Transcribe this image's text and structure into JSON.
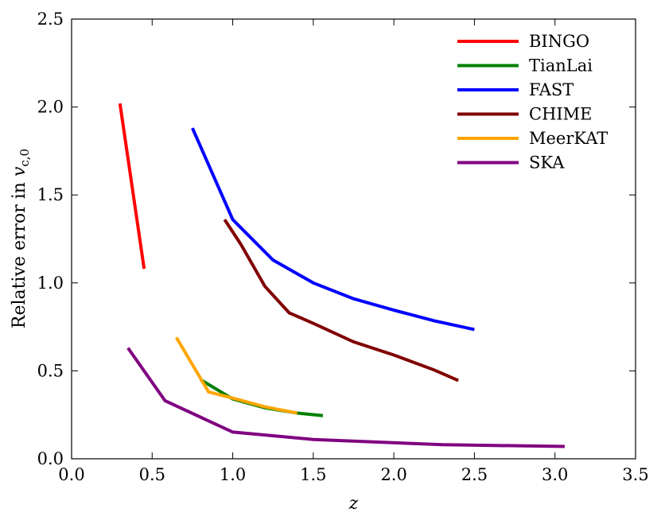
{
  "chart_data": {
    "type": "line",
    "title": "",
    "xlabel": "z",
    "ylabel": "Relative error in v_c,0",
    "ylabel_parts": {
      "prefix": "Relative error in ",
      "symbol": "v",
      "subscript": "c,0"
    },
    "xlim": [
      0.0,
      3.5
    ],
    "ylim": [
      0.0,
      2.5
    ],
    "x_ticks": [
      0.0,
      0.5,
      1.0,
      1.5,
      2.0,
      2.5,
      3.0,
      3.5
    ],
    "x_tick_labels": [
      "0.0",
      "0.5",
      "1.0",
      "1.5",
      "2.0",
      "2.5",
      "3.0",
      "3.5"
    ],
    "y_ticks": [
      0.0,
      0.5,
      1.0,
      1.5,
      2.0,
      2.5
    ],
    "y_tick_labels": [
      "0.0",
      "0.5",
      "1.0",
      "1.5",
      "2.0",
      "2.5"
    ],
    "grid": false,
    "legend_position": "top-right",
    "series": [
      {
        "name": "BINGO",
        "color": "#ff0000",
        "x": [
          0.3,
          0.45
        ],
        "y": [
          2.02,
          1.08
        ]
      },
      {
        "name": "TianLai",
        "color": "#008000",
        "x": [
          0.8,
          1.0,
          1.2,
          1.4,
          1.56
        ],
        "y": [
          0.45,
          0.34,
          0.29,
          0.26,
          0.245
        ]
      },
      {
        "name": "FAST",
        "color": "#0000ff",
        "x": [
          0.75,
          1.0,
          1.25,
          1.5,
          1.75,
          2.0,
          2.25,
          2.5
        ],
        "y": [
          1.88,
          1.36,
          1.13,
          1.0,
          0.91,
          0.845,
          0.785,
          0.735
        ]
      },
      {
        "name": "CHIME",
        "color": "#800000",
        "x": [
          0.95,
          1.05,
          1.2,
          1.35,
          1.5,
          1.75,
          2.0,
          2.25,
          2.4
        ],
        "y": [
          1.36,
          1.22,
          0.98,
          0.83,
          0.77,
          0.665,
          0.59,
          0.505,
          0.445
        ]
      },
      {
        "name": "MeerKAT",
        "color": "#ffa500",
        "x": [
          0.65,
          0.85,
          1.0,
          1.2,
          1.4
        ],
        "y": [
          0.69,
          0.38,
          0.345,
          0.295,
          0.26
        ]
      },
      {
        "name": "SKA",
        "color": "#800080",
        "x": [
          0.35,
          0.58,
          1.0,
          1.5,
          2.3,
          3.06
        ],
        "y": [
          0.63,
          0.33,
          0.152,
          0.11,
          0.08,
          0.07
        ]
      }
    ]
  }
}
